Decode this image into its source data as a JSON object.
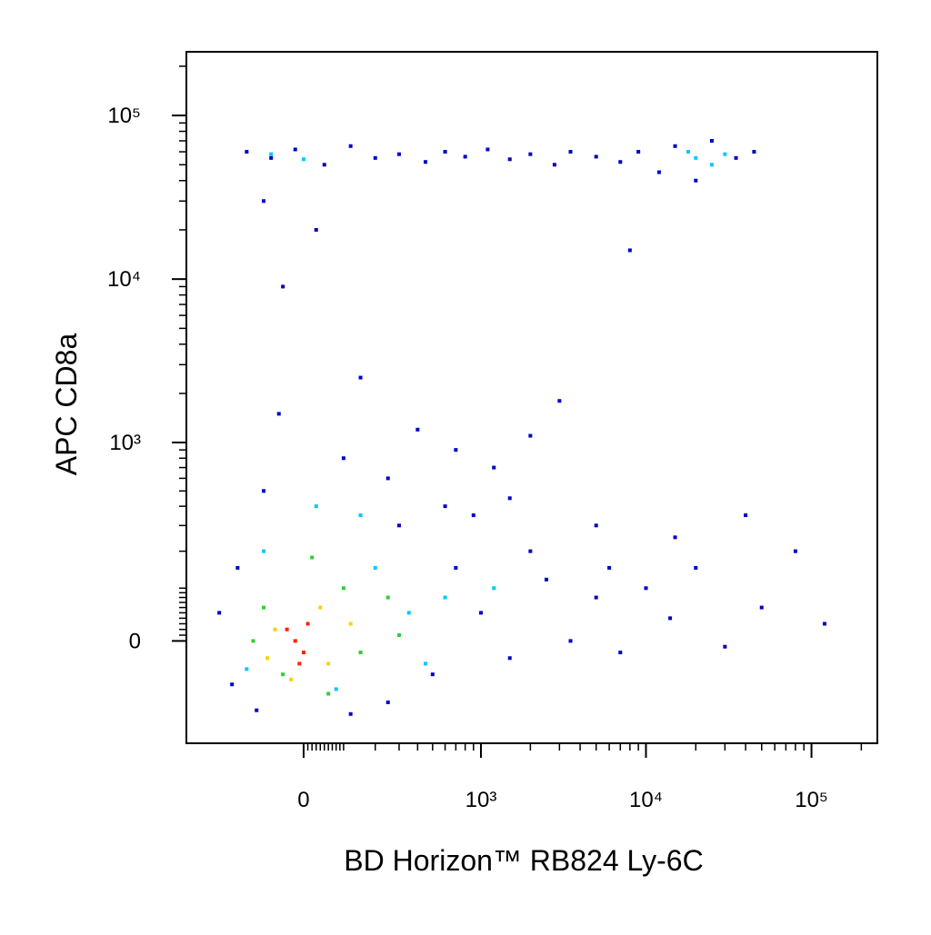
{
  "chart_data": {
    "type": "scatter",
    "x_label": "BD Horizon™ RB824 Ly-6C",
    "y_label": "APC CD8a",
    "xscale": "biexponential",
    "yscale": "biexponential",
    "xlim": [
      -420,
      250000
    ],
    "ylim": [
      -245,
      245000
    ],
    "xticks": [
      0,
      {
        "value": 1000,
        "label": "10³"
      },
      {
        "value": 10000,
        "label": "10⁴"
      },
      {
        "value": 100000,
        "label": "10⁵"
      }
    ],
    "yticks": [
      0,
      {
        "value": 1000,
        "label": "10³"
      },
      {
        "value": 10000,
        "label": "10⁴"
      },
      {
        "value": 100000,
        "label": "10⁵"
      }
    ],
    "series": [
      {
        "color": "#0000c8",
        "x": [
          -150,
          -80,
          -20,
          50,
          120,
          200,
          300,
          450,
          600,
          800,
          1100,
          1500,
          2000,
          2800,
          3500,
          5000,
          7000,
          9000,
          12000,
          15000,
          20000,
          25000,
          35000,
          45000,
          8000,
          -100,
          30,
          -50,
          100,
          -60,
          250,
          400,
          700,
          1200,
          2000,
          600,
          150,
          -100,
          300,
          900,
          1500,
          3000,
          5000,
          1000,
          1500,
          2500,
          3500,
          5000,
          7000,
          10000,
          14000,
          20000,
          30000,
          50000,
          80000,
          120000,
          40000,
          15000,
          700,
          500,
          -200,
          -250,
          -180,
          250,
          120,
          -120,
          2000,
          6000
        ],
        "y": [
          60000,
          55000,
          62000,
          50000,
          65000,
          55000,
          58000,
          52000,
          60000,
          56000,
          62000,
          54000,
          58000,
          50000,
          60000,
          56000,
          52000,
          60000,
          45000,
          65000,
          40000,
          70000,
          55000,
          60000,
          15000,
          30000,
          20000,
          9000,
          800,
          1500,
          600,
          1200,
          900,
          700,
          1100,
          400,
          2500,
          500,
          300,
          350,
          450,
          1800,
          300,
          50,
          -30,
          120,
          0,
          80,
          -20,
          100,
          40,
          150,
          -10,
          60,
          200,
          30,
          350,
          250,
          150,
          -60,
          -80,
          50,
          150,
          -120,
          -150,
          -140,
          200,
          150
        ]
      },
      {
        "color": "#00c8ff",
        "x": [
          20000,
          25000,
          30000,
          18000,
          -80,
          0,
          200,
          350,
          -100,
          150,
          600,
          450,
          80,
          -150,
          1200,
          30
        ],
        "y": [
          55000,
          50000,
          58000,
          60000,
          58000,
          54000,
          150,
          50,
          200,
          350,
          80,
          -40,
          -90,
          -50,
          100,
          400
        ]
      },
      {
        "color": "#30d030",
        "x": [
          -100,
          100,
          -50,
          150,
          250,
          20,
          -130,
          60,
          300
        ],
        "y": [
          60,
          100,
          -60,
          -20,
          80,
          180,
          0,
          -100,
          10
        ]
      },
      {
        "color": "#ffd000",
        "x": [
          -70,
          40,
          60,
          -30,
          120,
          -90
        ],
        "y": [
          20,
          60,
          -40,
          -70,
          30,
          -30
        ]
      },
      {
        "color": "#ff2000",
        "x": [
          -20,
          0,
          -40,
          10,
          -10
        ],
        "y": [
          0,
          -20,
          20,
          30,
          -40
        ]
      }
    ]
  }
}
